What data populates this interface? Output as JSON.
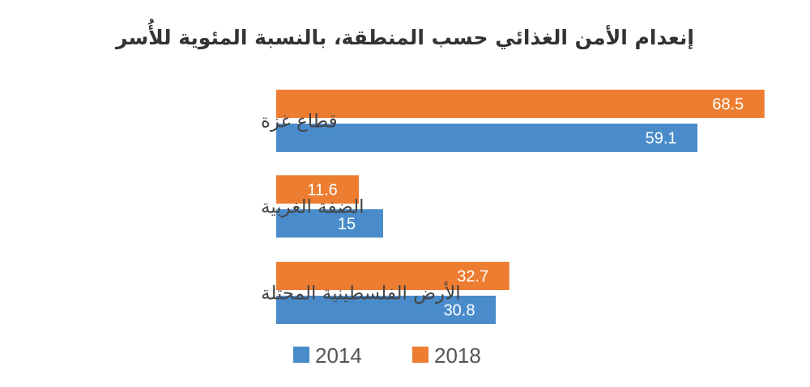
{
  "chart_data": {
    "type": "bar",
    "orientation": "horizontal",
    "title": "إنعدام الأمن الغذائي حسب المنطقة، بالنسبة المئوية للأُسر",
    "categories": [
      "قطاع غزة",
      "الضفة الغربية",
      "الأرض الفلسطينية المحتلة"
    ],
    "series": [
      {
        "name": "2018",
        "color": "#ED7D31",
        "values": [
          68.5,
          11.6,
          32.7
        ],
        "labels": [
          "68.5",
          "11.6",
          "32.7"
        ]
      },
      {
        "name": "2014",
        "color": "#4A8CCB",
        "values": [
          59.1,
          15,
          30.8
        ],
        "labels": [
          "59.1",
          "15",
          "30.8"
        ]
      }
    ],
    "legend_order": [
      "2014",
      "2018"
    ],
    "legend_position": "bottom",
    "xlim": [
      0,
      70
    ],
    "grid": false,
    "axes_visible": false
  }
}
